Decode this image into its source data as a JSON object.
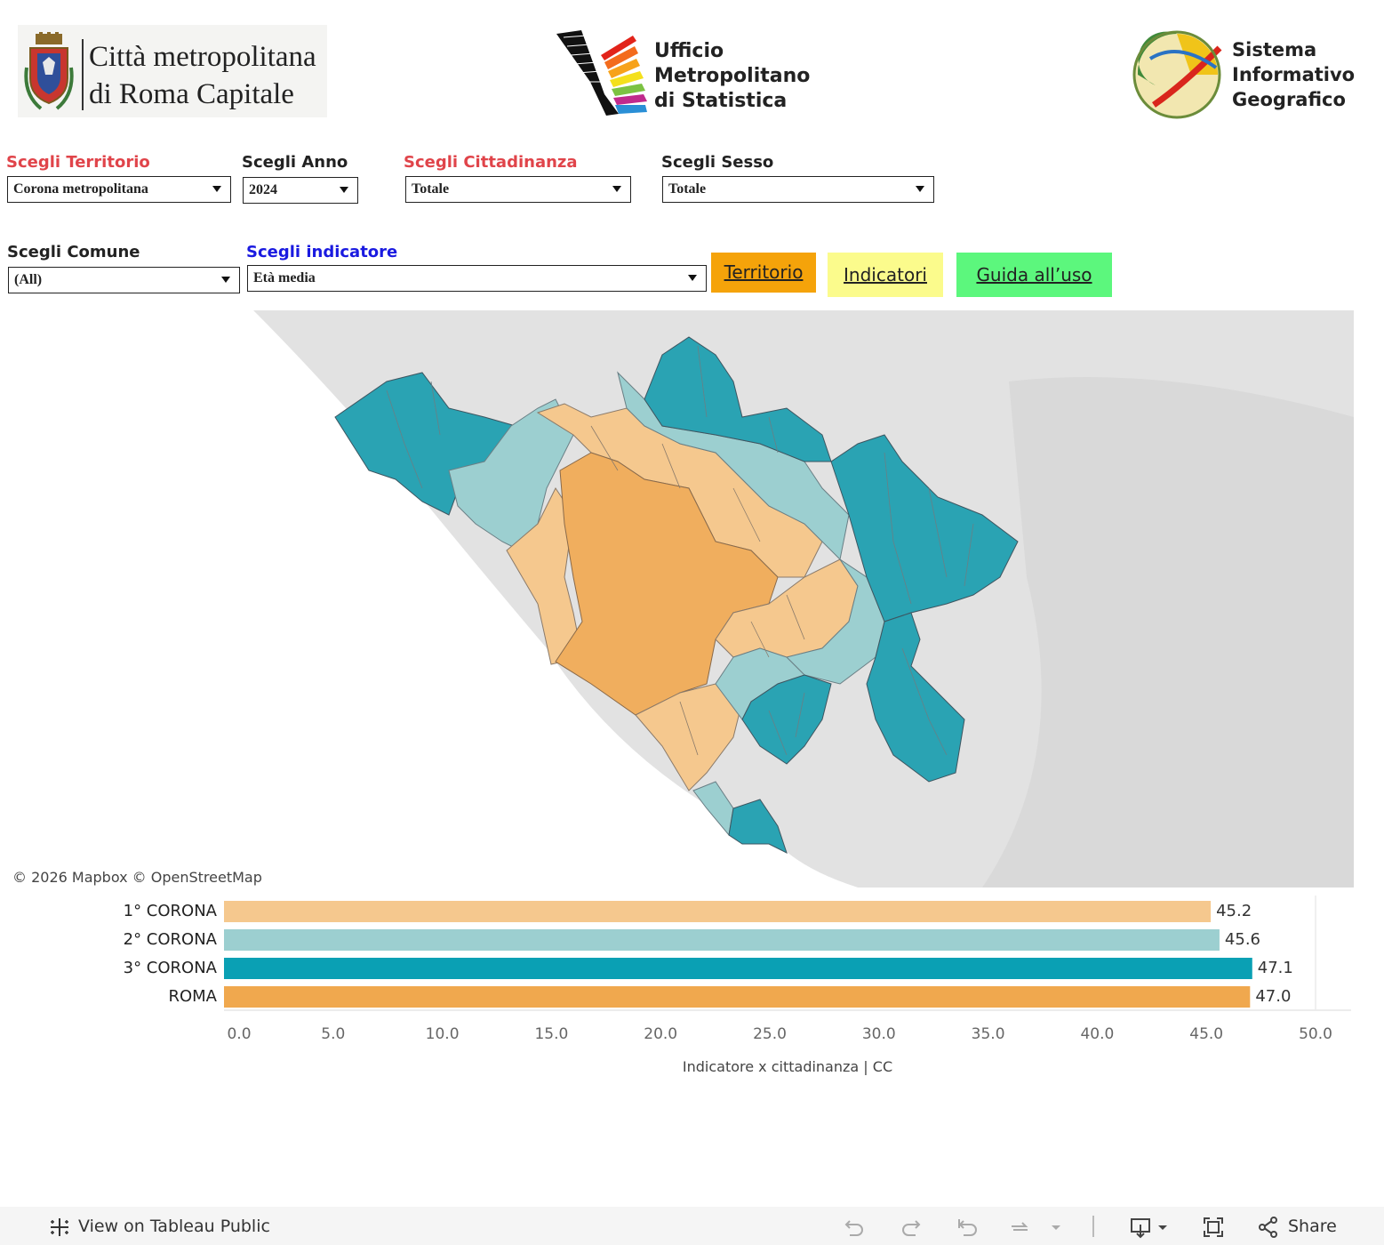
{
  "header": {
    "logo_left_line1": "Città metropolitana",
    "logo_left_line2": "di Roma Capitale",
    "logo_center_line1": "Ufficio",
    "logo_center_line2": "Metropolitano",
    "logo_center_line3": "di Statistica",
    "logo_right_line1": "Sistema",
    "logo_right_line2": "Informativo",
    "logo_right_line3": "Geografico"
  },
  "filters": {
    "territorio_label": "Scegli Territorio",
    "territorio_value": "Corona  metropolitana",
    "anno_label": "Scegli Anno",
    "anno_value": "2024",
    "cittadinanza_label": "Scegli Cittadinanza",
    "cittadinanza_value": "Totale",
    "sesso_label": "Scegli Sesso",
    "sesso_value": "Totale",
    "comune_label": "Scegli Comune",
    "comune_value": "(All)",
    "indicatore_label": "Scegli indicatore",
    "indicatore_value": "Età  media"
  },
  "buttons": {
    "territorio": "Territorio",
    "indicatori": "Indicatori",
    "guida": "Guida all’uso"
  },
  "map": {
    "attribution": "© 2026 Mapbox  © OpenStreetMap",
    "colors": {
      "primo": "#f5c88e",
      "secondo": "#9ccfd0",
      "terzo": "#2aa3b3",
      "roma": "#f0ae5e",
      "background": "#ececec"
    }
  },
  "chart_data": {
    "type": "bar",
    "orientation": "horizontal",
    "categories": [
      "1° CORONA",
      "2° CORONA",
      "3° CORONA",
      "ROMA"
    ],
    "values": [
      45.2,
      45.6,
      47.1,
      47.0
    ],
    "value_labels": [
      "45.2",
      "45.6",
      "47.1",
      "47.0"
    ],
    "colors": [
      "#f5c88e",
      "#9ccfd0",
      "#0aa0b4",
      "#f0a84e"
    ],
    "xlabel": "Indicatore x cittadinanza | CC",
    "xlim": [
      0,
      50
    ],
    "ticks": [
      "0.0",
      "5.0",
      "10.0",
      "15.0",
      "20.0",
      "25.0",
      "30.0",
      "35.0",
      "40.0",
      "45.0",
      "50.0"
    ]
  },
  "footer": {
    "view_on_tableau": "View on Tableau Public",
    "share": "Share"
  }
}
